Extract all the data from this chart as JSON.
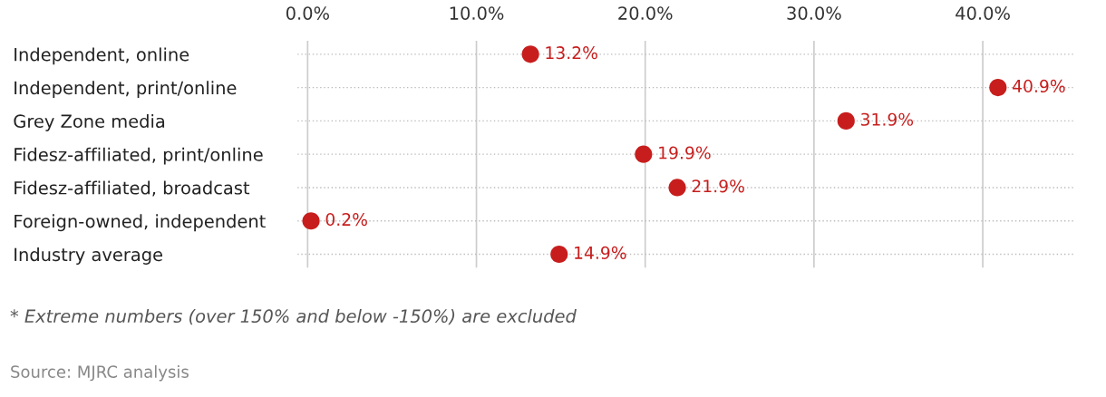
{
  "chart_data": {
    "type": "scatter",
    "orientation": "horizontal",
    "categories": [
      "Independent, online",
      "Independent, print/online",
      "Grey Zone media",
      "Fidesz-affiliated, print/online",
      "Fidesz-affiliated, broadcast",
      "Foreign-owned, independent",
      "Industry average"
    ],
    "values": [
      13.2,
      40.9,
      31.9,
      19.9,
      21.9,
      0.2,
      14.9
    ],
    "value_labels": [
      "13.2%",
      "40.9%",
      "31.9%",
      "19.9%",
      "21.9%",
      "0.2%",
      "14.9%"
    ],
    "color": "#c71e1d",
    "marker": "circle",
    "xlim": [
      -0.6,
      45.4
    ],
    "xticks": [
      {
        "value": 0,
        "label": "0.0%"
      },
      {
        "value": 10,
        "label": "10.0%"
      },
      {
        "value": 20,
        "label": "20.0%"
      },
      {
        "value": 30,
        "label": "30.0%"
      },
      {
        "value": 40,
        "label": "40.0%"
      }
    ],
    "grid": true,
    "legend": false,
    "annotations": [
      "* Extreme numbers (over 150% and below -150%) are excluded",
      "Source: MJRC analysis"
    ]
  }
}
